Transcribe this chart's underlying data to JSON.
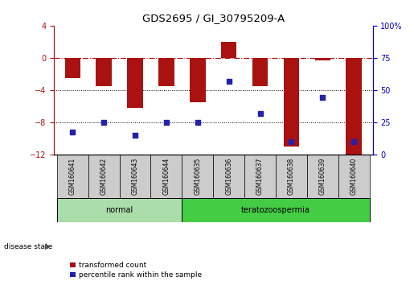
{
  "title": "GDS2695 / GI_30795209-A",
  "samples": [
    "GSM160641",
    "GSM160642",
    "GSM160643",
    "GSM160644",
    "GSM160635",
    "GSM160636",
    "GSM160637",
    "GSM160638",
    "GSM160639",
    "GSM160640"
  ],
  "transformed_count": [
    -2.5,
    -3.5,
    -6.2,
    -3.5,
    -5.5,
    2.0,
    -3.5,
    -11.0,
    -0.3,
    -12.0
  ],
  "percentile_rank": [
    17,
    25,
    15,
    25,
    25,
    57,
    32,
    10,
    44,
    10
  ],
  "ylim_left": [
    -12,
    4
  ],
  "ylim_right": [
    0,
    100
  ],
  "yticks_left": [
    -12,
    -8,
    -4,
    0,
    4
  ],
  "yticks_right": [
    0,
    25,
    50,
    75,
    100
  ],
  "dotted_hlines": [
    -4,
    -8
  ],
  "bar_color": "#AA1111",
  "dot_color": "#2222AA",
  "normal_group": [
    "GSM160641",
    "GSM160642",
    "GSM160643",
    "GSM160644"
  ],
  "terato_group": [
    "GSM160635",
    "GSM160636",
    "GSM160637",
    "GSM160638",
    "GSM160639",
    "GSM160640"
  ],
  "normal_label": "normal",
  "terato_label": "teratozoospermia",
  "normal_color": "#AADDAA",
  "terato_color": "#44CC44",
  "group_box_color": "#CCCCCC",
  "disease_state_label": "disease state",
  "legend_red_label": "transformed count",
  "legend_blue_label": "percentile rank within the sample",
  "right_axis_color": "#0000CC",
  "left_axis_color": "#AA1111"
}
